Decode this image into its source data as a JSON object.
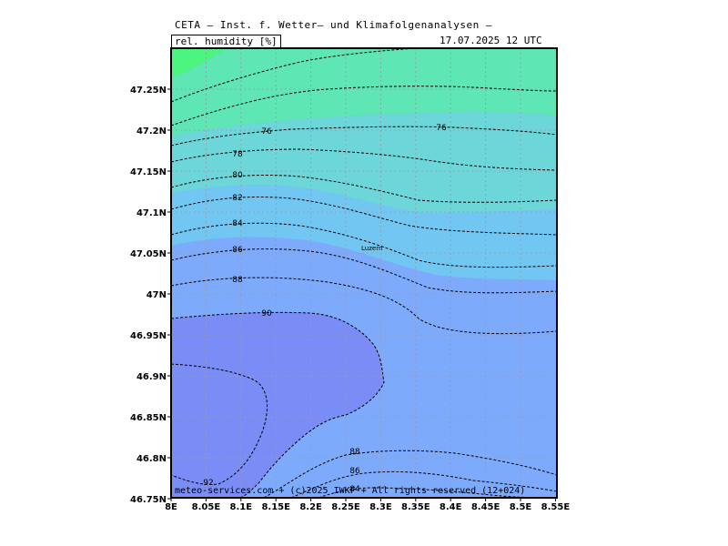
{
  "header": {
    "title": "CETA — Inst. f. Wetter— und Klimafolgenanalysen —",
    "variable": "rel. humidity [%]",
    "datetime": "17.07.2025 12 UTC"
  },
  "footer": {
    "copyright": "meteo-services.com + (c)2025 IWKF + All rights reserved (12+024)"
  },
  "map": {
    "city": "Luzern",
    "colors": {
      "green": "#4cf57f",
      "teal": "#5ee6b4",
      "cyan": "#6cd6d8",
      "sky": "#72c6f2",
      "blue": "#7daafb",
      "violet": "#7a8cf5",
      "frame": "#000000"
    },
    "contour_levels": [
      76,
      78,
      80,
      82,
      84,
      86,
      88,
      90,
      92
    ],
    "contour_labels": [
      {
        "text": "76"
      },
      {
        "text": "76"
      },
      {
        "text": "78"
      },
      {
        "text": "80"
      },
      {
        "text": "82"
      },
      {
        "text": "84"
      },
      {
        "text": "86"
      },
      {
        "text": "88"
      },
      {
        "text": "90"
      },
      {
        "text": "92"
      },
      {
        "text": "88"
      },
      {
        "text": "86"
      },
      {
        "text": "84"
      }
    ],
    "lat_ticks": [
      "47.25N",
      "47.2N",
      "47.15N",
      "47.1N",
      "47.05N",
      "47N",
      "46.95N",
      "46.9N",
      "46.85N",
      "46.8N",
      "46.75N"
    ],
    "lon_ticks": [
      "8E",
      "8.05E",
      "8.1E",
      "8.15E",
      "8.2E",
      "8.25E",
      "8.3E",
      "8.35E",
      "8.4E",
      "8.45E",
      "8.5E",
      "8.55E"
    ]
  }
}
